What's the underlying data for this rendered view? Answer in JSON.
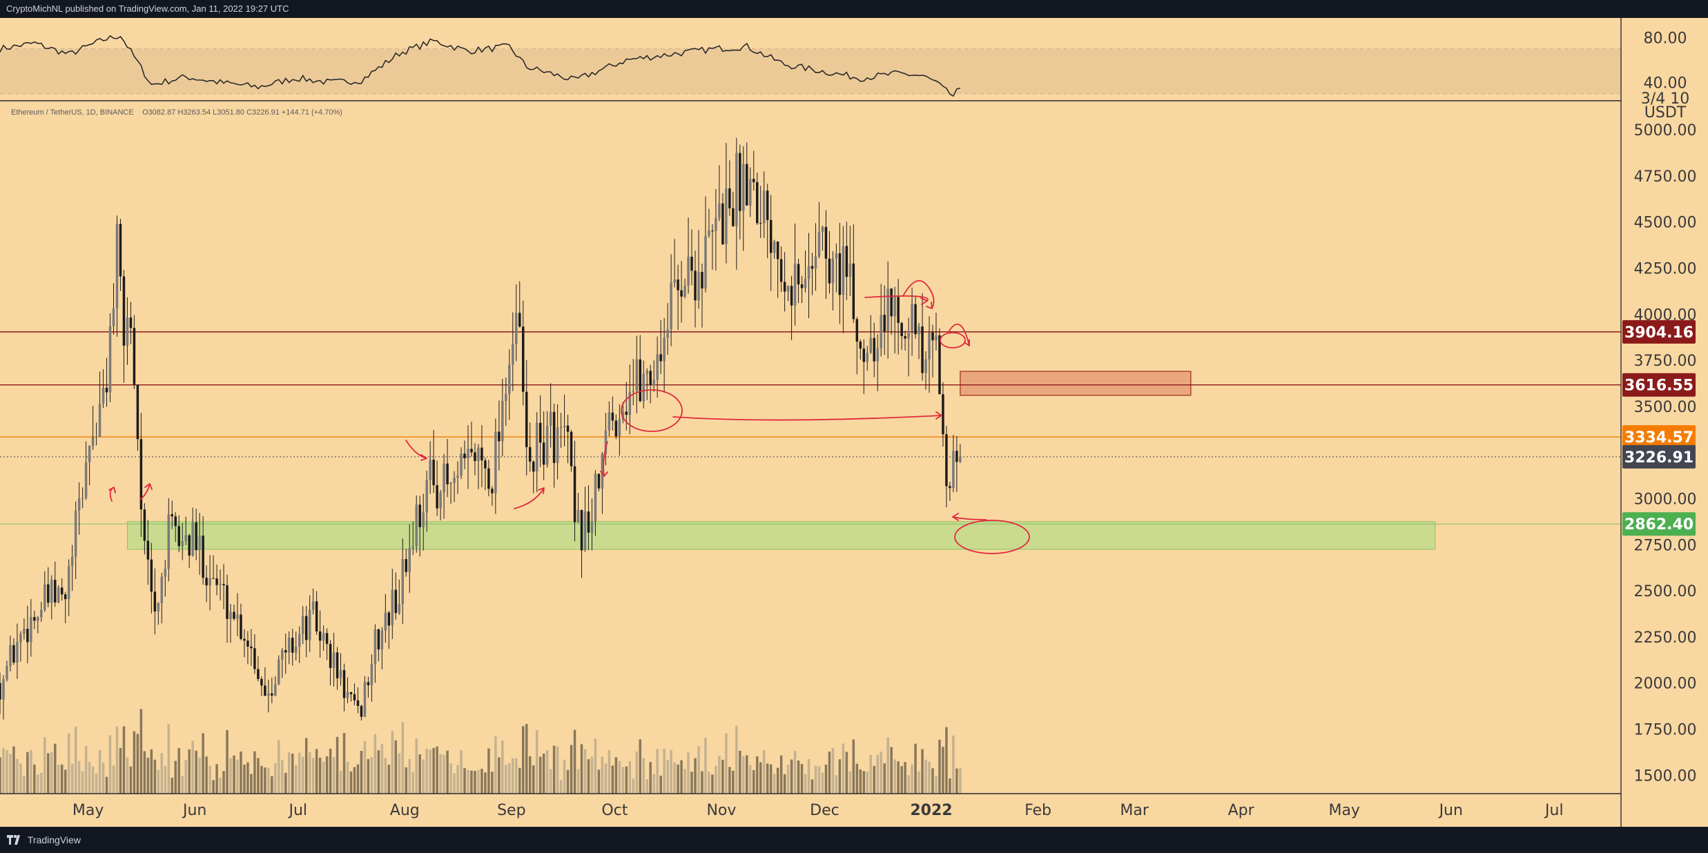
{
  "header": {
    "publisher": "CryptoMichNL published on TradingView.com, Jan 11, 2022 19:27 UTC"
  },
  "footer": {
    "brand": "TradingView",
    "logo_icon": "tradingview-logo-icon"
  },
  "colors": {
    "background": "#f9d7a1",
    "rsi_band": "#ecca98",
    "candle": "#1b1b1b",
    "red_level": "#8b1a1a",
    "orange_level": "#f57c00",
    "current_price": "#434651",
    "green_zone": "#c2dc8c",
    "green_tag": "#4caf50",
    "orange_box": "#e8a27a",
    "annotation": "#e0283c"
  },
  "legend": {
    "symbol": "Ethereum / TetherUS, 1D, BINANCE",
    "ohlc": "O3082.87  H3263.54  L3051.80  C3226.91  +144.71 (+4.70%)"
  },
  "chart_data": {
    "type": "candlestick",
    "symbol": "Ethereum / TetherUS",
    "interval": "1D",
    "exchange": "BINANCE",
    "ohlc": {
      "open": 3082.87,
      "high": 3263.54,
      "low": 3051.8,
      "close": 3226.91,
      "change": 144.71,
      "change_pct": 4.7
    },
    "price_axis": {
      "ticks": [
        "5000.00",
        "4750.00",
        "4500.00",
        "4250.00",
        "4000.00",
        "3750.00",
        "3500.00",
        "3250.00",
        "3000.00",
        "2750.00",
        "2500.00",
        "2250.00",
        "2000.00",
        "1750.00",
        "1500.00"
      ],
      "ylim": [
        1400,
        5120
      ],
      "unit_label": "USDT",
      "clipped_label": "3/4 10"
    },
    "rsi_axis": {
      "ticks": [
        "80.00",
        "40.00"
      ],
      "ylim": [
        25,
        95
      ],
      "band": [
        30,
        70
      ]
    },
    "time_axis": {
      "ticks": [
        "May",
        "Jun",
        "Jul",
        "Aug",
        "Sep",
        "Oct",
        "Nov",
        "Dec",
        "2022",
        "Feb",
        "Mar",
        "Apr",
        "May",
        "Jun",
        "Jul"
      ],
      "bold_tick": "2022",
      "range": [
        "2021-04-07",
        "2022-07-22"
      ]
    },
    "price_points": [
      [
        "2021-04-07",
        2000
      ],
      [
        "2021-04-14",
        2300
      ],
      [
        "2021-04-21",
        2450
      ],
      [
        "2021-04-26",
        2450
      ],
      [
        "2021-05-03",
        3300
      ],
      [
        "2021-05-07",
        3500
      ],
      [
        "2021-05-11",
        4300
      ],
      [
        "2021-05-13",
        3900
      ],
      [
        "2021-05-15",
        4000
      ],
      [
        "2021-05-19",
        2700
      ],
      [
        "2021-05-22",
        2350
      ],
      [
        "2021-05-26",
        2800
      ],
      [
        "2021-06-03",
        2750
      ],
      [
        "2021-06-10",
        2500
      ],
      [
        "2021-06-18",
        2250
      ],
      [
        "2021-06-23",
        1950
      ],
      [
        "2021-06-30",
        2200
      ],
      [
        "2021-07-07",
        2350
      ],
      [
        "2021-07-13",
        2100
      ],
      [
        "2021-07-20",
        1800
      ],
      [
        "2021-07-25",
        2200
      ],
      [
        "2021-08-01",
        2500
      ],
      [
        "2021-08-06",
        2900
      ],
      [
        "2021-08-10",
        3100
      ],
      [
        "2021-08-17",
        3050
      ],
      [
        "2021-08-23",
        3250
      ],
      [
        "2021-08-28",
        3150
      ],
      [
        "2021-09-02",
        3800
      ],
      [
        "2021-09-05",
        3900
      ],
      [
        "2021-09-07",
        3200
      ],
      [
        "2021-09-14",
        3350
      ],
      [
        "2021-09-19",
        3300
      ],
      [
        "2021-09-21",
        2800
      ],
      [
        "2021-09-26",
        2900
      ],
      [
        "2021-10-01",
        3400
      ],
      [
        "2021-10-07",
        3600
      ],
      [
        "2021-10-14",
        3700
      ],
      [
        "2021-10-21",
        4200
      ],
      [
        "2021-10-28",
        4250
      ],
      [
        "2021-11-02",
        4500
      ],
      [
        "2021-11-10",
        4800
      ],
      [
        "2021-11-15",
        4600
      ],
      [
        "2021-11-21",
        4300
      ],
      [
        "2021-11-26",
        4100
      ],
      [
        "2021-12-01",
        4500
      ],
      [
        "2021-12-04",
        4200
      ],
      [
        "2021-12-08",
        4300
      ],
      [
        "2021-12-13",
        3800
      ],
      [
        "2021-12-18",
        3950
      ],
      [
        "2021-12-23",
        4050
      ],
      [
        "2021-12-27",
        4050
      ],
      [
        "2021-12-31",
        3700
      ],
      [
        "2022-01-04",
        3800
      ],
      [
        "2022-01-07",
        3200
      ],
      [
        "2022-01-10",
        3100
      ],
      [
        "2022-01-11",
        3226.91
      ]
    ],
    "rsi_points": [
      [
        "2021-04-07",
        70
      ],
      [
        "2021-04-17",
        75
      ],
      [
        "2021-04-27",
        65
      ],
      [
        "2021-05-07",
        78
      ],
      [
        "2021-05-12",
        82
      ],
      [
        "2021-05-17",
        58
      ],
      [
        "2021-05-21",
        38
      ],
      [
        "2021-05-31",
        45
      ],
      [
        "2021-06-10",
        40
      ],
      [
        "2021-06-21",
        36
      ],
      [
        "2021-07-02",
        44
      ],
      [
        "2021-07-12",
        40
      ],
      [
        "2021-07-21",
        42
      ],
      [
        "2021-08-01",
        66
      ],
      [
        "2021-08-11",
        77
      ],
      [
        "2021-08-21",
        68
      ],
      [
        "2021-09-02",
        72
      ],
      [
        "2021-09-07",
        54
      ],
      [
        "2021-09-21",
        42
      ],
      [
        "2021-10-06",
        60
      ],
      [
        "2021-10-21",
        66
      ],
      [
        "2021-11-01",
        70
      ],
      [
        "2021-11-10",
        72
      ],
      [
        "2021-11-21",
        56
      ],
      [
        "2021-12-02",
        50
      ],
      [
        "2021-12-13",
        44
      ],
      [
        "2021-12-24",
        48
      ],
      [
        "2021-12-31",
        46
      ],
      [
        "2022-01-04",
        40
      ],
      [
        "2022-01-07",
        32
      ],
      [
        "2022-01-09",
        28
      ],
      [
        "2022-01-11",
        35
      ]
    ],
    "horizontal_levels": [
      {
        "price": 3904.16,
        "label": "3904.16",
        "color": "#8b1a1a"
      },
      {
        "price": 3616.55,
        "label": "3616.55",
        "color": "#8b1a1a"
      },
      {
        "price": 3334.57,
        "label": "3334.57",
        "color": "#f57c00"
      },
      {
        "price": 3226.91,
        "label": "3226.91",
        "color": "#434651",
        "style": "dotted",
        "current": true
      },
      {
        "price": 2862.4,
        "label": "2862.40",
        "color": "#4caf50"
      }
    ],
    "zones": [
      {
        "name": "resistance-box",
        "from": "2022-01-11",
        "to": "2022-03-19",
        "low": 3560,
        "high": 3690
      },
      {
        "name": "support-zone",
        "from": "2021-05-14",
        "to": "2022-05-29",
        "low": 2725,
        "high": 2875
      }
    ],
    "annotations": "hand-drawn red arrows and circles"
  }
}
